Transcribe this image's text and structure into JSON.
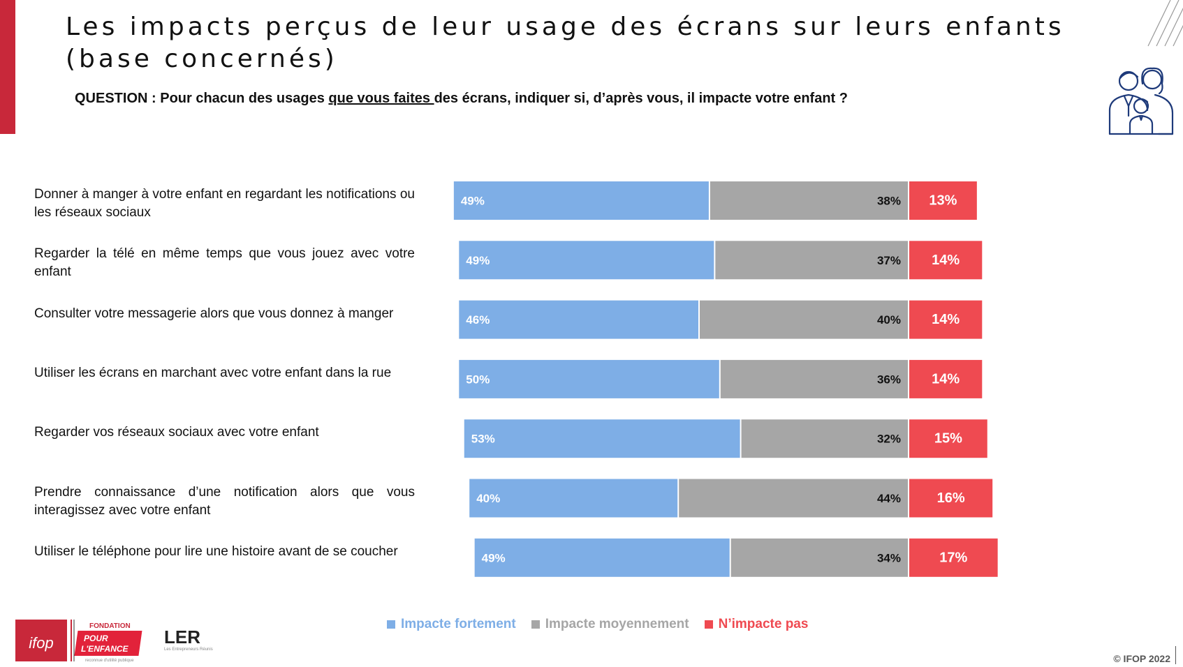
{
  "header": {
    "title": "Les impacts perçus de leur usage des écrans sur leurs enfants (base concernés)",
    "question_prefix": "QUESTION : Pour chacun des usages ",
    "question_underlined": "que vous faites ",
    "question_suffix": "des écrans, indiquer si, d’après vous, il impacte votre enfant ?"
  },
  "chart_data": {
    "type": "bar",
    "orientation": "horizontal",
    "stacked": true,
    "categories": [
      "Donner à manger à votre enfant en regardant les notifications ou les réseaux sociaux",
      "Regarder la télé en même temps que vous jouez avec votre enfant",
      "Consulter votre messagerie alors que vous donnez à manger",
      "Utiliser les écrans en marchant avec votre enfant dans la rue",
      "Regarder vos réseaux sociaux avec votre enfant",
      "Prendre connaissance d’une notification alors que vous interagissez avec votre enfant",
      "Utiliser le téléphone pour lire une histoire avant de se coucher"
    ],
    "series": [
      {
        "name": "Impacte fortement",
        "color": "#7eaee6",
        "values": [
          49,
          49,
          46,
          50,
          53,
          40,
          49
        ],
        "labels": [
          "49%",
          "49%",
          "46%",
          "50%",
          "53%",
          "40%",
          "49%"
        ]
      },
      {
        "name": "Impacte moyennement",
        "color": "#a6a6a6",
        "values": [
          38,
          37,
          40,
          36,
          32,
          44,
          34
        ],
        "labels": [
          "38%",
          "37%",
          "40%",
          "36%",
          "32%",
          "44%",
          "34%"
        ]
      },
      {
        "name": "N’impacte pas",
        "color": "#ef4a51",
        "values": [
          13,
          14,
          14,
          14,
          15,
          16,
          17
        ],
        "labels": [
          "13%",
          "14%",
          "14%",
          "14%",
          "15%",
          "16%",
          "17%"
        ]
      }
    ],
    "legend_position": "bottom",
    "grid": false,
    "data_labels": true
  },
  "footer": {
    "logo_ifop": "ifop",
    "logo_fondation_line1": "FONDATION",
    "logo_fondation_line2": "POUR",
    "logo_fondation_line3": "L'ENFANCE",
    "logo_fondation_tagline": "reconnue d'utilité publique",
    "logo_ler": "LER",
    "logo_ler_tagline": "Les Entrepreneurs Réunis",
    "copyright": "© IFOP 2022"
  }
}
